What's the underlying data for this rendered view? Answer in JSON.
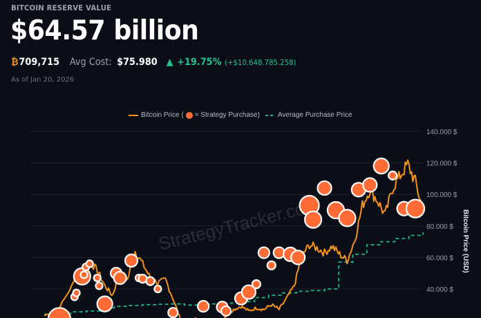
{
  "header": {
    "eyebrow": "BITCOIN RESERVE VALUE",
    "value": "$64.57 billion",
    "btc_symbol": "₿",
    "holdings": "709,715",
    "avg_cost_label": "Avg Cost:",
    "avg_cost": "$75.980",
    "trend_icon": "▲",
    "change_pct": "+19.75%",
    "change_abs": "(+$10.648.785.258)",
    "as_of": "As of Jan 20, 2026"
  },
  "colors": {
    "background": "#0b0e17",
    "price_line": "#f7931a",
    "purchase_dot": "#ff6b35",
    "avg_line": "#1fb585",
    "gain": "#22c38e"
  },
  "legend": {
    "price_label": "Bitcoin Price (",
    "purchase_label": " = Strategy Purchase)",
    "avg_label": "Average Purchase Price"
  },
  "watermark": "StrategyTracker.com",
  "chart_data": {
    "type": "line",
    "title": "Bitcoin Reserve Value",
    "xlabel": "",
    "ylabel": "Bitcoin Price (USD)",
    "ylim": [
      20000,
      140000
    ],
    "y_ticks": [
      {
        "value": 140000,
        "label": "140.000 $"
      },
      {
        "value": 120000,
        "label": "120.000 $"
      },
      {
        "value": 100000,
        "label": "100.000 $"
      },
      {
        "value": 80000,
        "label": "80.000 $"
      },
      {
        "value": 60000,
        "label": "60.000 $"
      },
      {
        "value": 40000,
        "label": "40.000 $"
      }
    ],
    "grid": true,
    "legend_position": "top",
    "series": [
      {
        "name": "Bitcoin Price",
        "style": "line",
        "x": [
          0,
          4,
          8,
          12,
          14,
          16,
          18,
          20,
          22,
          24,
          26,
          28,
          30,
          32,
          34,
          36,
          38,
          40,
          42,
          44,
          46,
          48,
          50,
          52,
          54,
          56,
          58,
          60,
          62,
          64,
          66,
          68,
          70,
          72,
          74,
          76,
          78,
          80,
          82,
          84,
          86,
          88,
          90,
          92,
          94,
          96,
          98,
          100
        ],
        "values": [
          23000,
          28000,
          45000,
          57000,
          52000,
          42000,
          36000,
          50000,
          46000,
          64000,
          56000,
          47000,
          44000,
          46000,
          34000,
          20000,
          17000,
          21000,
          19000,
          16500,
          18500,
          23000,
          27000,
          29000,
          26000,
          28000,
          27000,
          30000,
          27000,
          34000,
          42000,
          61000,
          68000,
          66000,
          63000,
          67000,
          62000,
          58000,
          71000,
          93000,
          103000,
          96000,
          87000,
          104000,
          112000,
          119000,
          108000,
          90000
        ]
      },
      {
        "name": "Average Purchase Price",
        "style": "dashed",
        "values": [
          24000,
          24500,
          25500,
          26000,
          28000,
          29000,
          29500,
          30000,
          30300,
          30500,
          29800,
          30200,
          30500,
          31000,
          32000,
          34500,
          36000,
          37500,
          38500,
          39000,
          40000,
          57000,
          62000,
          68000,
          70000,
          72000,
          74000,
          75980
        ]
      },
      {
        "name": "Strategy Purchase",
        "style": "scatter",
        "points": [
          {
            "x": 4,
            "y": 21000,
            "size": 16
          },
          {
            "x": 8,
            "y": 35000,
            "size": 5
          },
          {
            "x": 8.5,
            "y": 37500,
            "size": 5
          },
          {
            "x": 10,
            "y": 48000,
            "size": 12
          },
          {
            "x": 10.5,
            "y": 49000,
            "size": 5
          },
          {
            "x": 11,
            "y": 54000,
            "size": 5
          },
          {
            "x": 12,
            "y": 56000,
            "size": 5
          },
          {
            "x": 14,
            "y": 47000,
            "size": 5
          },
          {
            "x": 14.5,
            "y": 42000,
            "size": 5
          },
          {
            "x": 16,
            "y": 30500,
            "size": 11
          },
          {
            "x": 19,
            "y": 50000,
            "size": 8
          },
          {
            "x": 20,
            "y": 47000,
            "size": 9
          },
          {
            "x": 23,
            "y": 58000,
            "size": 9
          },
          {
            "x": 25,
            "y": 47000,
            "size": 5
          },
          {
            "x": 26,
            "y": 46500,
            "size": 6
          },
          {
            "x": 28,
            "y": 45000,
            "size": 6
          },
          {
            "x": 30,
            "y": 40000,
            "size": 5
          },
          {
            "x": 34,
            "y": 25000,
            "size": 7
          },
          {
            "x": 42,
            "y": 29000,
            "size": 8
          },
          {
            "x": 47,
            "y": 28500,
            "size": 8
          },
          {
            "x": 48,
            "y": 26000,
            "size": 7
          },
          {
            "x": 52,
            "y": 34000,
            "size": 9
          },
          {
            "x": 54,
            "y": 38000,
            "size": 10
          },
          {
            "x": 56,
            "y": 43000,
            "size": 6
          },
          {
            "x": 58,
            "y": 63000,
            "size": 8
          },
          {
            "x": 60,
            "y": 55000,
            "size": 6
          },
          {
            "x": 62,
            "y": 63000,
            "size": 8
          },
          {
            "x": 65,
            "y": 62000,
            "size": 10
          },
          {
            "x": 67,
            "y": 60000,
            "size": 10
          },
          {
            "x": 70,
            "y": 93000,
            "size": 14
          },
          {
            "x": 71,
            "y": 84000,
            "size": 12
          },
          {
            "x": 74,
            "y": 104000,
            "size": 10
          },
          {
            "x": 77,
            "y": 90000,
            "size": 12
          },
          {
            "x": 80,
            "y": 85000,
            "size": 12
          },
          {
            "x": 83,
            "y": 103000,
            "size": 10
          },
          {
            "x": 86,
            "y": 106000,
            "size": 10
          },
          {
            "x": 89,
            "y": 118000,
            "size": 11
          },
          {
            "x": 92,
            "y": 112000,
            "size": 6
          },
          {
            "x": 95,
            "y": 91000,
            "size": 10
          },
          {
            "x": 98,
            "y": 91000,
            "size": 13
          }
        ]
      }
    ]
  }
}
